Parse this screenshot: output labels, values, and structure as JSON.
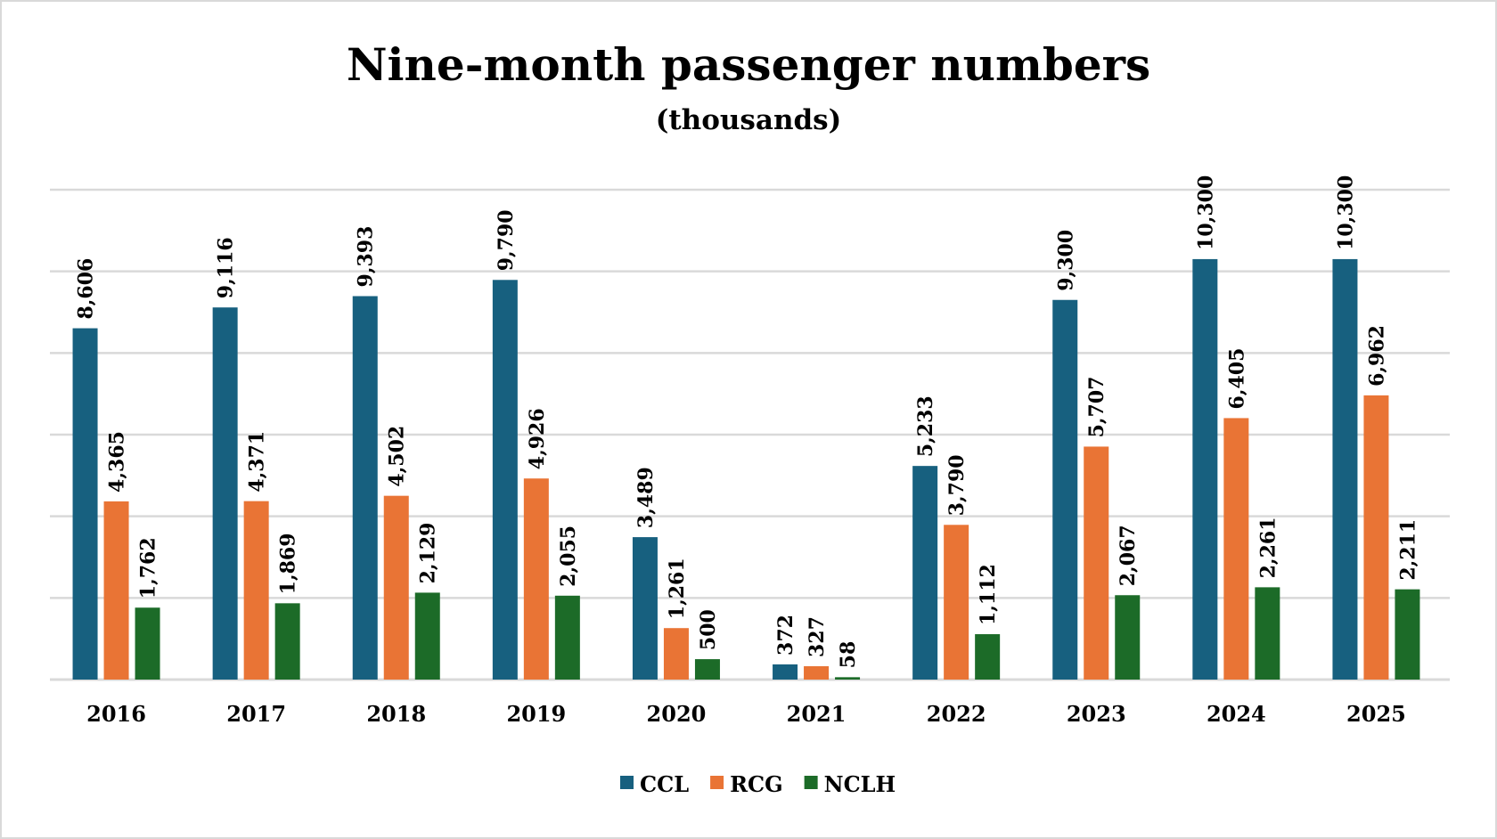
{
  "chart_data": {
    "type": "bar",
    "title": "Nine-month passenger numbers",
    "subtitle": "(thousands)",
    "categories": [
      "2016",
      "2017",
      "2018",
      "2019",
      "2020",
      "2021",
      "2022",
      "2023",
      "2024",
      "2025"
    ],
    "series": [
      {
        "name": "CCL",
        "color": "#17607f",
        "values": [
          8606,
          9116,
          9393,
          9790,
          3489,
          372,
          5233,
          9300,
          10300,
          10300
        ]
      },
      {
        "name": "RCG",
        "color": "#e97435",
        "values": [
          4365,
          4371,
          4502,
          4926,
          1261,
          327,
          3790,
          5707,
          6405,
          6962
        ]
      },
      {
        "name": "NCLH",
        "color": "#1c6b28",
        "values": [
          1762,
          1869,
          2129,
          2055,
          500,
          58,
          1112,
          2067,
          2261,
          2211
        ]
      }
    ],
    "ylim": [
      0,
      12000
    ],
    "y_gridline_step": 2000,
    "y_tick_labels_shown": false,
    "data_labels": "rotated vertical above bars",
    "grid": true,
    "legend_placement": "bottom"
  }
}
